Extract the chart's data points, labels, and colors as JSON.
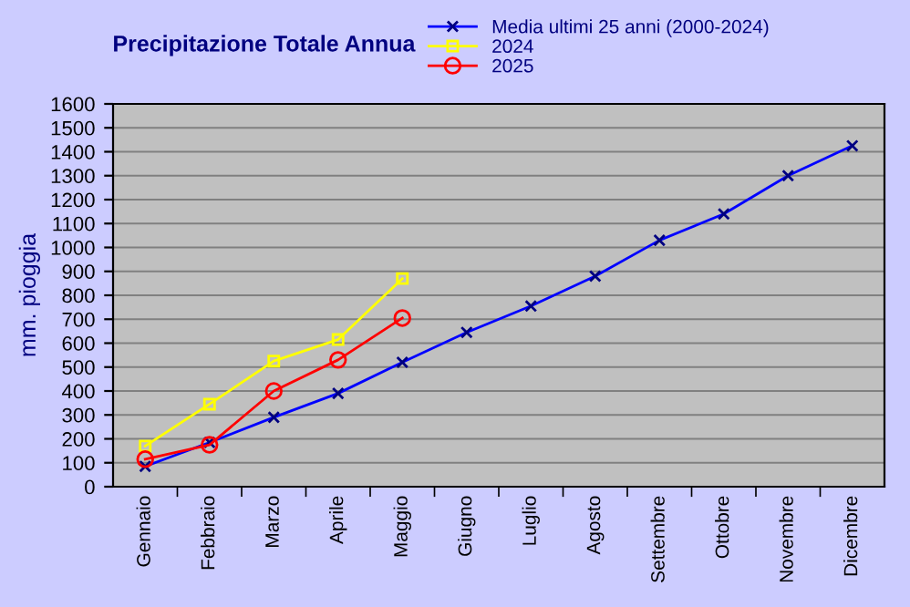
{
  "chart_data": {
    "type": "line",
    "title": "Precipitazione Totale Annua",
    "ylabel": "mm. pioggia",
    "categories": [
      "Gennaio",
      "Febbraio",
      "Marzo",
      "Aprile",
      "Maggio",
      "Giugno",
      "Luglio",
      "Agosto",
      "Settembre",
      "Ottobre",
      "Novembre",
      "Dicembre"
    ],
    "series": [
      {
        "name": "Media ultimi 25 anni (2000-2024)",
        "color": "#0000ff",
        "marker": "cross",
        "values": [
          85,
          185,
          290,
          390,
          520,
          645,
          755,
          880,
          1030,
          1140,
          1300,
          1425
        ]
      },
      {
        "name": "2024",
        "color": "#ffff00",
        "marker": "square",
        "values": [
          170,
          345,
          525,
          615,
          870,
          null,
          null,
          null,
          null,
          null,
          null,
          null
        ]
      },
      {
        "name": "2025",
        "color": "#ff0000",
        "marker": "circle",
        "values": [
          115,
          175,
          400,
          530,
          705,
          null,
          null,
          null,
          null,
          null,
          null,
          null
        ]
      }
    ],
    "ylim": [
      0,
      1600
    ],
    "yticks": [
      0,
      100,
      200,
      300,
      400,
      500,
      600,
      700,
      800,
      900,
      1000,
      1100,
      1200,
      1300,
      1400,
      1500,
      1600
    ],
    "grid": "y",
    "legend": "top right"
  }
}
